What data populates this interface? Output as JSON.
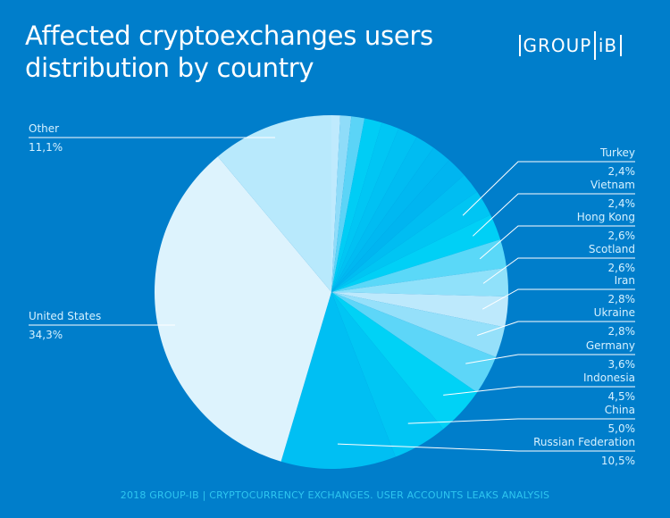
{
  "header": {
    "title_line1": "Affected cryptoexchanges users",
    "title_line2": "distribution by country",
    "logo_left": "GROUP",
    "logo_right": "iB"
  },
  "footer": {
    "text": "2018 GROUP-IB  |  CRYPTOCURRENCY EXCHANGES. USER ACCOUNTS LEAKS ANALYSIS"
  },
  "colors": {
    "background": "#007ecb",
    "label_text": "#d6f1ff",
    "leader_line": "#ffffff",
    "footer_text": "#2ec6f0"
  },
  "chart_data": {
    "type": "pie",
    "title": "Affected cryptoexchanges users distribution by country",
    "start": "12 o'clock",
    "direction": "clockwise",
    "slices": [
      {
        "label": "",
        "value": 0.8,
        "color": "#bfeafd",
        "labeled": false
      },
      {
        "label": "",
        "value": 1.0,
        "color": "#8fdcf9",
        "labeled": false
      },
      {
        "label": "",
        "value": 1.2,
        "color": "#5bd4f7",
        "labeled": false
      },
      {
        "label": "",
        "value": 1.6,
        "color": "#00cdf5",
        "labeled": false
      },
      {
        "label": "",
        "value": 1.6,
        "color": "#00c6f4",
        "labeled": false
      },
      {
        "label": "",
        "value": 1.8,
        "color": "#00c1f3",
        "labeled": false
      },
      {
        "label": "",
        "value": 1.8,
        "color": "#00bcf2",
        "labeled": false
      },
      {
        "label": "",
        "value": 1.8,
        "color": "#00b8f1",
        "labeled": false
      },
      {
        "label": "",
        "value": 1.9,
        "color": "#00b5f0",
        "labeled": false
      },
      {
        "label": "",
        "value": 1.9,
        "color": "#00bdf2",
        "labeled": false
      },
      {
        "label": "Turkey",
        "value": 2.4,
        "display": "2,4%",
        "color": "#00c5f3",
        "labeled": true
      },
      {
        "label": "Vietnam",
        "value": 2.4,
        "display": "2,4%",
        "color": "#00d0f6",
        "labeled": true
      },
      {
        "label": "Hong Kong",
        "value": 2.6,
        "display": "2,6%",
        "color": "#5ad8f8",
        "labeled": true
      },
      {
        "label": "Scotland",
        "value": 2.6,
        "display": "2,6%",
        "color": "#90e1fa",
        "labeled": true
      },
      {
        "label": "Iran",
        "value": 2.8,
        "display": "2,8%",
        "color": "#bde9fc",
        "labeled": true
      },
      {
        "label": "Ukraine",
        "value": 2.8,
        "display": "2,8%",
        "color": "#95e0fa",
        "labeled": true
      },
      {
        "label": "Germany",
        "value": 3.6,
        "display": "3,6%",
        "color": "#5dd6f8",
        "labeled": true
      },
      {
        "label": "Indonesia",
        "value": 4.5,
        "display": "4,5%",
        "color": "#00d2f6",
        "labeled": true
      },
      {
        "label": "China",
        "value": 5.0,
        "display": "5,0%",
        "color": "#00c6f4",
        "labeled": true
      },
      {
        "label": "Russian Federation",
        "value": 10.5,
        "display": "10,5%",
        "color": "#00bff3",
        "labeled": true
      },
      {
        "label": "United States",
        "value": 34.3,
        "display": "34,3%",
        "color": "#ddf3fd",
        "labeled": true
      },
      {
        "label": "Other",
        "value": 11.1,
        "display": "11,1%",
        "color": "#b8e9fc",
        "labeled": true
      }
    ],
    "legend": "none",
    "annotations": "leader-line labels: left side for United States and Other, right side for remaining countries"
  }
}
